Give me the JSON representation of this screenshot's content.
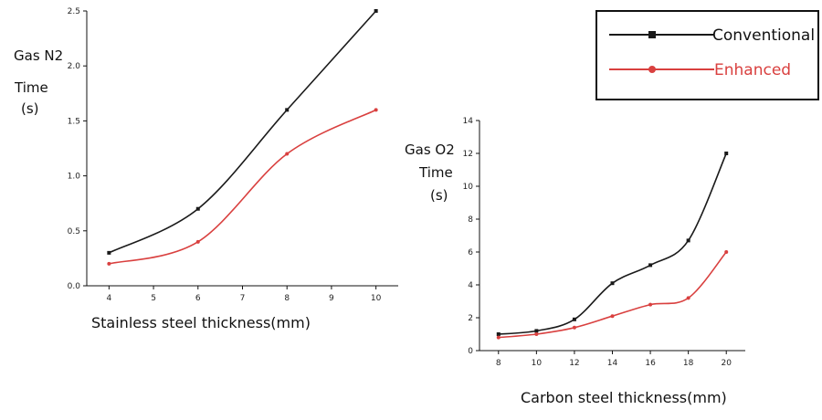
{
  "chart_data": [
    {
      "type": "line",
      "ylabel_lines": [
        "Gas N2",
        "Time",
        "(s)"
      ],
      "xlabel": "Stainless steel thickness(mm)",
      "x": [
        4,
        6,
        8,
        10
      ],
      "xlim": [
        3.5,
        10.5
      ],
      "xticks": [
        4,
        5,
        6,
        7,
        8,
        9,
        10
      ],
      "ylim": [
        0,
        2.5
      ],
      "yticks": [
        0.0,
        0.5,
        1.0,
        1.5,
        2.0,
        2.5
      ],
      "series": [
        {
          "name": "Conventional",
          "color": "#1a1a1a",
          "values": [
            0.3,
            0.7,
            1.6,
            2.5
          ]
        },
        {
          "name": "Enhanced",
          "color": "#d9403f",
          "values": [
            0.2,
            0.4,
            1.2,
            1.6
          ]
        }
      ]
    },
    {
      "type": "line",
      "ylabel_lines": [
        "Gas O2",
        "Time",
        "(s)"
      ],
      "xlabel": "Carbon steel thickness(mm)",
      "x": [
        8,
        10,
        12,
        14,
        16,
        18,
        20
      ],
      "xlim": [
        7,
        21
      ],
      "xticks": [
        8,
        10,
        12,
        14,
        16,
        18,
        20
      ],
      "ylim": [
        0,
        14
      ],
      "yticks": [
        0,
        2,
        4,
        6,
        8,
        10,
        12,
        14
      ],
      "series": [
        {
          "name": "Conventional",
          "color": "#1a1a1a",
          "values": [
            1.0,
            1.2,
            1.9,
            4.1,
            5.2,
            6.7,
            12.0
          ]
        },
        {
          "name": "Enhanced",
          "color": "#d9403f",
          "values": [
            0.8,
            1.0,
            1.4,
            2.1,
            2.8,
            3.2,
            6.0
          ]
        }
      ]
    }
  ],
  "legend": {
    "items": [
      {
        "label": "Conventional",
        "color": "#1a1a1a"
      },
      {
        "label": "Enhanced",
        "color": "#d9403f"
      }
    ]
  }
}
